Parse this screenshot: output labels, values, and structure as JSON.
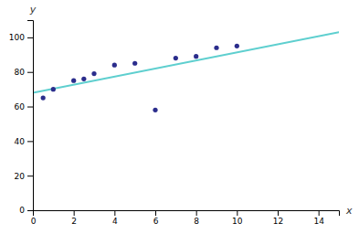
{
  "chart_data": {
    "type": "scatter",
    "xlabel": "x",
    "ylabel": "y",
    "series": [
      {
        "type": "line",
        "color": "#5ecfcf",
        "x": [
          0,
          15
        ],
        "values": [
          68,
          103
        ]
      },
      {
        "type": "scatter",
        "color": "#2b2d8c",
        "x": [
          0.5,
          1.0,
          2.0,
          2.5,
          3.0,
          4.0,
          5.0,
          6.0,
          7.0,
          8.0,
          9.0,
          10.0
        ],
        "values": [
          65,
          70,
          75,
          76,
          79,
          84,
          85,
          58,
          88,
          89,
          94,
          95
        ]
      }
    ],
    "xlim": [
      0,
      15
    ],
    "ylim": [
      0,
      110
    ],
    "xticks": [
      0,
      2,
      4,
      6,
      8,
      10,
      12,
      14
    ],
    "yticks": [
      0,
      20,
      40,
      60,
      80,
      100
    ],
    "grid": false
  }
}
